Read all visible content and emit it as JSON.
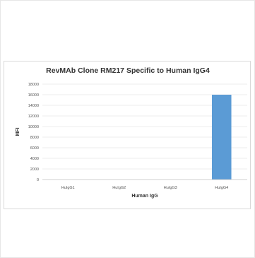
{
  "chart_data": {
    "type": "bar",
    "title": "RevMAb Clone RM217 Specific to Human IgG4",
    "xlabel": "Human IgG",
    "ylabel": "MFI",
    "categories": [
      "HuIgG1",
      "HuIgG2",
      "HuIgG3",
      "HuIgG4"
    ],
    "values": [
      0,
      0,
      0,
      16000
    ],
    "ylim": [
      0,
      18000
    ],
    "yticks": [
      0,
      2000,
      4000,
      6000,
      8000,
      10000,
      12000,
      14000,
      16000,
      18000
    ],
    "grid": true,
    "legend": "none",
    "bar_color": "#5b9bd5"
  }
}
